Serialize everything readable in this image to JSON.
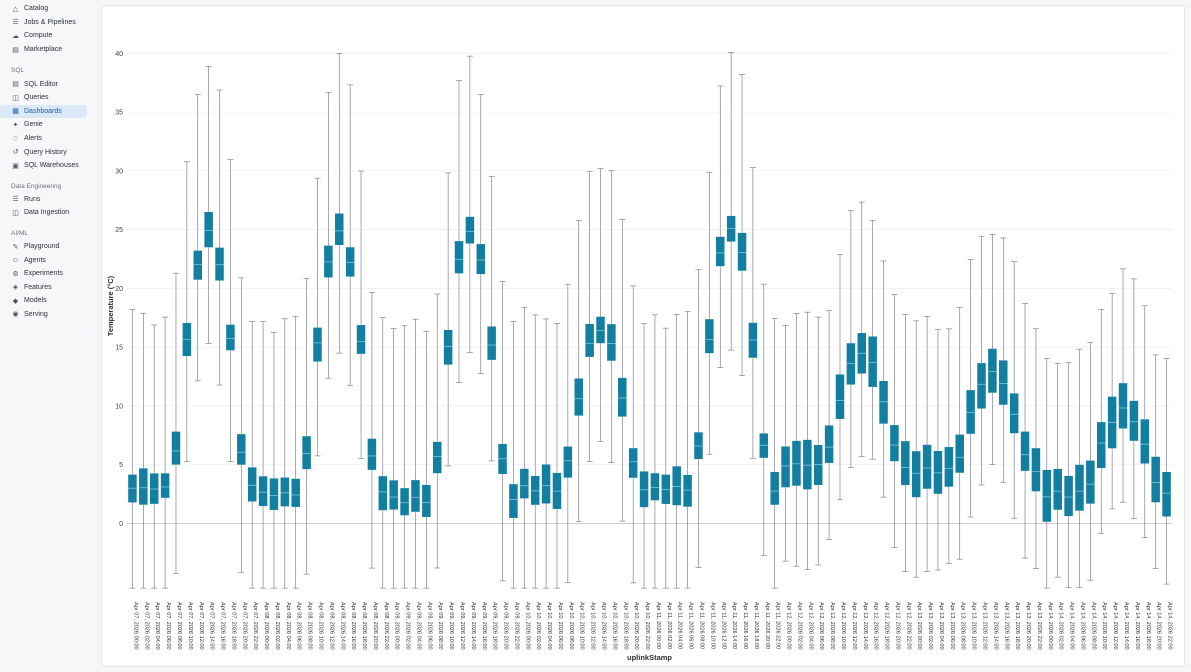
{
  "sidebar": {
    "items_top": [
      {
        "label": "Catalog",
        "icon": "catalog-icon"
      },
      {
        "label": "Jobs & Pipelines",
        "icon": "jobs-icon"
      },
      {
        "label": "Compute",
        "icon": "cloud-icon"
      },
      {
        "label": "Marketplace",
        "icon": "marketplace-icon"
      }
    ],
    "sql_label": "SQL",
    "sql_items": [
      {
        "label": "SQL Editor",
        "icon": "sql-editor-icon"
      },
      {
        "label": "Queries",
        "icon": "queries-icon"
      },
      {
        "label": "Dashboards",
        "icon": "dashboards-icon",
        "active": true
      },
      {
        "label": "Genie",
        "icon": "genie-icon"
      },
      {
        "label": "Alerts",
        "icon": "bell-icon"
      },
      {
        "label": "Query History",
        "icon": "history-icon"
      },
      {
        "label": "SQL Warehouses",
        "icon": "warehouse-icon"
      }
    ],
    "de_label": "Data Engineering",
    "de_items": [
      {
        "label": "Runs",
        "icon": "runs-icon"
      },
      {
        "label": "Data Ingestion",
        "icon": "ingestion-icon"
      }
    ],
    "ai_label": "AI/ML",
    "ai_items": [
      {
        "label": "Playground",
        "icon": "playground-icon"
      },
      {
        "label": "Agents",
        "icon": "agents-icon"
      },
      {
        "label": "Experiments",
        "icon": "experiments-icon"
      },
      {
        "label": "Features",
        "icon": "features-icon"
      },
      {
        "label": "Models",
        "icon": "models-icon"
      },
      {
        "label": "Serving",
        "icon": "serving-icon"
      }
    ]
  },
  "chart_data": {
    "type": "box",
    "xlabel": "uplinkStamp",
    "ylabel": "Temperature (°C)",
    "ylim": [
      -6,
      43
    ],
    "yticks": [
      0,
      5,
      10,
      15,
      20,
      25,
      30,
      35,
      40
    ],
    "grid": true,
    "color": "#127ea0",
    "start": "2026-04-07T00:00",
    "step_hours": 2,
    "label_every": 1,
    "days": [
      {
        "date": "Apr 07, 2026",
        "min": 3.0,
        "max": 38.0,
        "amp": 20.0,
        "hw": 1.1
      },
      {
        "date": "Apr 08, 2026",
        "min": 2.5,
        "max": 38.5,
        "amp": 20.0,
        "hw": 1.1
      },
      {
        "date": "Apr 09, 2026",
        "min": 2.0,
        "max": 39.0,
        "amp": 20.0,
        "hw": 1.1
      },
      {
        "date": "Apr 10, 2026",
        "min": 3.0,
        "max": 25.0,
        "amp": 20.0,
        "hw": 1.2
      },
      {
        "date": "Apr 11, 2026",
        "min": 3.0,
        "max": 39.0,
        "amp": 20.0,
        "hw": 1.1
      },
      {
        "date": "Apr 12, 2026",
        "min": 5.0,
        "max": 20.5,
        "amp": 15.0,
        "hw": 1.6
      },
      {
        "date": "Apr 13, 2026",
        "min": 4.5,
        "max": 18.0,
        "amp": 15.0,
        "hw": 1.6
      },
      {
        "date": "Apr 14, 2026",
        "min": 2.5,
        "max": 14.0,
        "amp": 13.0,
        "hw": 1.7
      }
    ]
  }
}
